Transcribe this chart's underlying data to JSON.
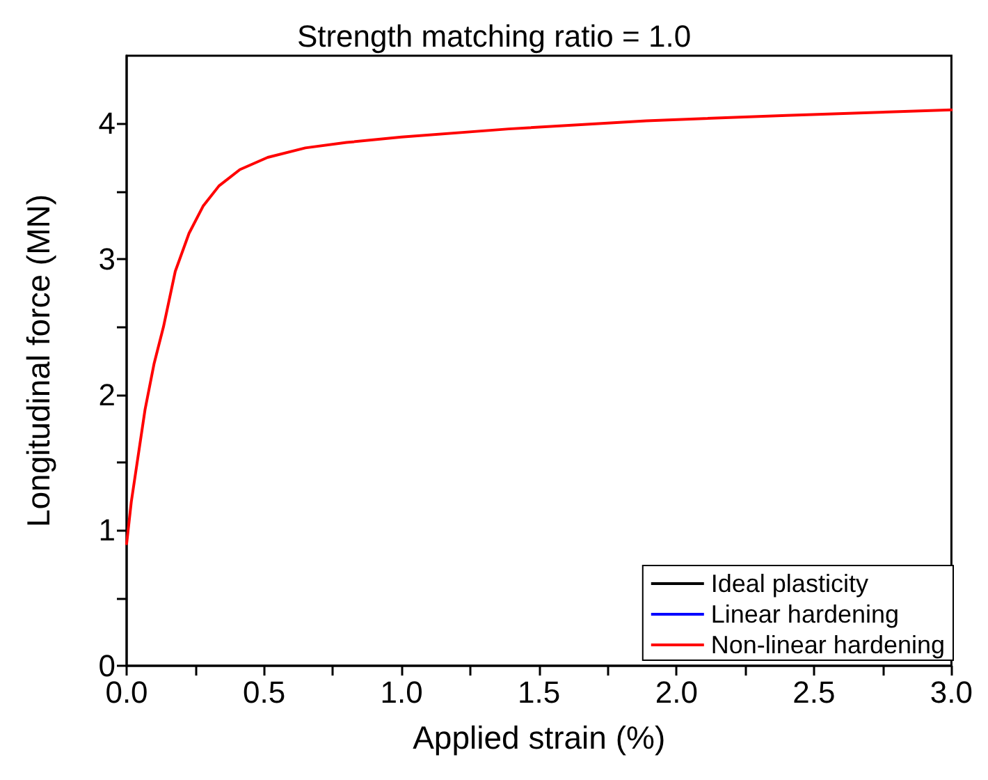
{
  "chart_data": {
    "type": "line",
    "title": "Strength matching ratio = 1.0",
    "xlabel": "Applied strain (%)",
    "ylabel": "Longitudinal force (MN)",
    "x": [
      0,
      0.017,
      0.067,
      0.1,
      0.134,
      0.177,
      0.227,
      0.278,
      0.336,
      0.412,
      0.513,
      0.65,
      0.8,
      1.0,
      1.39,
      1.89,
      2.4,
      3.0
    ],
    "series": [
      {
        "name": "Ideal plasticity",
        "color": "#000000",
        "values": [
          null,
          null,
          null,
          null,
          null,
          null,
          null,
          null,
          null,
          null,
          null,
          null,
          null,
          null,
          null,
          null,
          null,
          null
        ]
      },
      {
        "name": "Linear hardening",
        "color": "#0000ff",
        "values": [
          null,
          null,
          null,
          null,
          null,
          null,
          null,
          null,
          null,
          null,
          null,
          null,
          null,
          null,
          null,
          null,
          null,
          null
        ]
      },
      {
        "name": "Non-linear hardening",
        "color": "#ff0000",
        "values": [
          0.9,
          1.21,
          1.89,
          2.23,
          2.5,
          2.91,
          3.19,
          3.39,
          3.54,
          3.66,
          3.75,
          3.82,
          3.86,
          3.9,
          3.96,
          4.02,
          4.06,
          4.1
        ]
      }
    ],
    "xlim": [
      0,
      3
    ],
    "xticks": [
      {
        "value": 0,
        "label": "0.0"
      },
      {
        "value": 0.25,
        "label": null
      },
      {
        "value": 0.5,
        "label": "0.5"
      },
      {
        "value": 0.75,
        "label": null
      },
      {
        "value": 1,
        "label": "1.0"
      },
      {
        "value": 1.25,
        "label": null
      },
      {
        "value": 1.5,
        "label": "1.5"
      },
      {
        "value": 1.75,
        "label": null
      },
      {
        "value": 2,
        "label": "2.0"
      },
      {
        "value": 2.25,
        "label": null
      },
      {
        "value": 2.5,
        "label": "2.5"
      },
      {
        "value": 2.75,
        "label": null
      },
      {
        "value": 3,
        "label": "3.0"
      }
    ],
    "ylim": [
      0,
      4.5
    ],
    "yticks": [
      0,
      {
        "value": 0.5,
        "label": null
      },
      1,
      {
        "value": 1.5,
        "label": null
      },
      2,
      {
        "value": 2.5,
        "label": null
      },
      3,
      {
        "value": 3.5,
        "label": null
      },
      4
    ],
    "grid": false,
    "legend": "bottom right",
    "marker": "none",
    "line_style": "solid"
  }
}
